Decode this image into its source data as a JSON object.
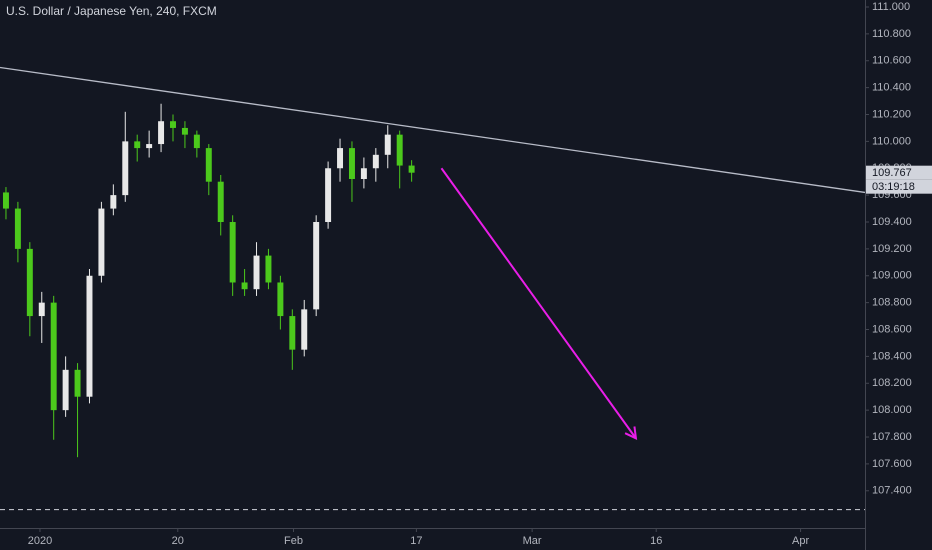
{
  "chart_data": {
    "type": "candlestick",
    "title": "U.S. Dollar / Japanese Yen, 240, FXCM",
    "x": [
      0.5,
      1.5,
      2.5,
      3.5,
      4.5,
      5.5,
      6.5,
      7.5,
      8.5,
      9.5,
      10.5,
      11.5,
      12.5,
      13.5,
      14.5,
      15.5,
      16.5,
      17.5,
      18.5,
      19.5,
      20.5,
      21.5,
      22.5,
      23.5,
      24.5,
      25.5,
      26.5,
      27.5,
      28.5,
      29.5,
      30.5,
      31.5,
      32.5,
      33.5,
      34.5
    ],
    "open": [
      109.62,
      109.5,
      109.2,
      108.7,
      108.8,
      108.0,
      108.3,
      108.1,
      109.0,
      109.5,
      109.6,
      110.0,
      109.95,
      109.98,
      110.15,
      110.1,
      110.05,
      109.95,
      109.7,
      109.4,
      108.95,
      108.9,
      109.15,
      108.95,
      108.7,
      108.45,
      108.75,
      109.4,
      109.8,
      109.95,
      109.72,
      109.8,
      109.9,
      110.05,
      109.82
    ],
    "high": [
      109.66,
      109.55,
      109.25,
      108.88,
      108.85,
      108.4,
      108.35,
      109.05,
      109.55,
      109.68,
      110.22,
      110.05,
      110.08,
      110.28,
      110.2,
      110.15,
      110.08,
      109.98,
      109.75,
      109.45,
      109.05,
      109.25,
      109.2,
      109.0,
      108.75,
      108.82,
      109.45,
      109.85,
      110.02,
      110.0,
      109.88,
      109.95,
      110.12,
      110.08,
      109.86
    ],
    "low": [
      109.42,
      109.1,
      108.55,
      108.5,
      107.78,
      107.95,
      107.65,
      108.05,
      108.95,
      109.45,
      109.55,
      109.85,
      109.88,
      109.92,
      110.0,
      109.95,
      109.88,
      109.6,
      109.3,
      108.85,
      108.85,
      108.85,
      108.9,
      108.6,
      108.3,
      108.4,
      108.7,
      109.35,
      109.7,
      109.55,
      109.65,
      109.7,
      109.8,
      109.65,
      109.7
    ],
    "close": [
      109.5,
      109.2,
      108.7,
      108.8,
      108.0,
      108.3,
      108.1,
      109.0,
      109.5,
      109.6,
      110.0,
      109.95,
      109.98,
      110.15,
      110.1,
      110.05,
      109.95,
      109.7,
      109.4,
      108.95,
      108.9,
      109.15,
      108.95,
      108.7,
      108.45,
      108.75,
      109.4,
      109.8,
      109.95,
      109.72,
      109.8,
      109.9,
      110.05,
      109.82,
      109.767
    ],
    "up_color": "#e8e8e8",
    "down_color": "#4cc91c",
    "countdown": "03:19:18",
    "trend_line": {
      "x": [
        0,
        72.5
      ],
      "y": [
        110.55,
        109.62
      ],
      "color": "#b8bcc8"
    },
    "arrow": {
      "x": [
        37,
        53.3
      ],
      "y": [
        109.8,
        107.79
      ],
      "color": "#e91ee8"
    },
    "horizontal_line": 107.26,
    "xlim": [
      0,
      72.5
    ],
    "xticks": [
      {
        "value": 3.35,
        "label": "2020"
      },
      {
        "value": 14.9,
        "label": "20"
      },
      {
        "value": 24.6,
        "label": "Feb"
      },
      {
        "value": 34.9,
        "label": "17"
      },
      {
        "value": 44.6,
        "label": "Mar"
      },
      {
        "value": 55,
        "label": "16"
      },
      {
        "value": 67.1,
        "label": "Apr"
      }
    ],
    "ylim": [
      107.123,
      111.052
    ],
    "yticks": [
      {
        "value": 107.4,
        "label": "107.400"
      },
      {
        "value": 107.6,
        "label": "107.600"
      },
      {
        "value": 107.8,
        "label": "107.800"
      },
      {
        "value": 108.0,
        "label": "108.000"
      },
      {
        "value": 108.2,
        "label": "108.200"
      },
      {
        "value": 108.4,
        "label": "108.400"
      },
      {
        "value": 108.6,
        "label": "108.600"
      },
      {
        "value": 108.8,
        "label": "108.800"
      },
      {
        "value": 109.0,
        "label": "109.000"
      },
      {
        "value": 109.2,
        "label": "109.200"
      },
      {
        "value": 109.4,
        "label": "109.400"
      },
      {
        "value": 109.6,
        "label": "109.600"
      },
      {
        "value": 109.8,
        "label": "109.800"
      },
      {
        "value": 110.0,
        "label": "110.000"
      },
      {
        "value": 110.2,
        "label": "110.200"
      },
      {
        "value": 110.4,
        "label": "110.400"
      },
      {
        "value": 110.6,
        "label": "110.600"
      },
      {
        "value": 110.8,
        "label": "110.800"
      },
      {
        "value": 111.0,
        "label": "111.000"
      }
    ]
  }
}
